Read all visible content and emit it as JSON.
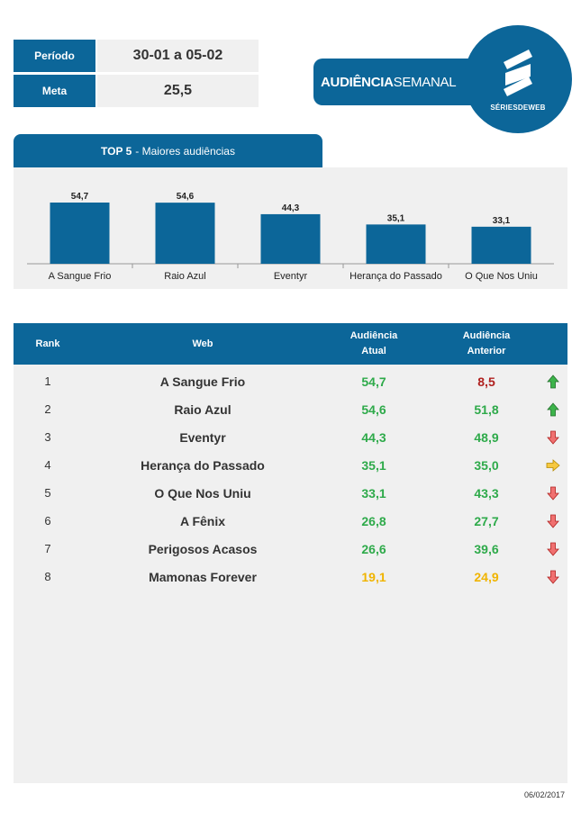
{
  "info": {
    "periodo_label": "Período",
    "periodo_value": "30-01 a 05-02",
    "meta_label": "Meta",
    "meta_value": "25,5"
  },
  "banner": {
    "bold": "AUDIÊNCIA",
    "light": "SEMANAL"
  },
  "logo": {
    "text": "SÉRIESDEWEB"
  },
  "top5": {
    "title_bold": "TOP 5",
    "title_rest": "- Maiores audiências"
  },
  "chart_data": {
    "type": "bar",
    "title": "TOP 5 - Maiores audiências",
    "categories": [
      "A Sangue Frio",
      "Raio Azul",
      "Eventyr",
      "Herança do Passado",
      "O Que Nos Uniu"
    ],
    "values": [
      54.7,
      54.6,
      44.3,
      35.1,
      33.1
    ],
    "value_labels": [
      "54,7",
      "54,6",
      "44,3",
      "35,1",
      "33,1"
    ],
    "color": "#0c6699",
    "grid": false
  },
  "table": {
    "headers": {
      "rank": "Rank",
      "web": "Web",
      "cur_line1": "Audiência",
      "cur_line2": "Atual",
      "prev_line1": "Audiência",
      "prev_line2": "Anterior"
    },
    "rows": [
      {
        "rank": "1",
        "web": "A Sangue Frio",
        "cur": "54,7",
        "prev": "8,5",
        "cur_color": "#2eaa4a",
        "prev_color": "#b0211f",
        "trend": "up"
      },
      {
        "rank": "2",
        "web": "Raio Azul",
        "cur": "54,6",
        "prev": "51,8",
        "cur_color": "#2eaa4a",
        "prev_color": "#2eaa4a",
        "trend": "up"
      },
      {
        "rank": "3",
        "web": "Eventyr",
        "cur": "44,3",
        "prev": "48,9",
        "cur_color": "#2eaa4a",
        "prev_color": "#2eaa4a",
        "trend": "down"
      },
      {
        "rank": "4",
        "web": "Herança do Passado",
        "cur": "35,1",
        "prev": "35,0",
        "cur_color": "#2eaa4a",
        "prev_color": "#2eaa4a",
        "trend": "flat"
      },
      {
        "rank": "5",
        "web": "O Que Nos Uniu",
        "cur": "33,1",
        "prev": "43,3",
        "cur_color": "#2eaa4a",
        "prev_color": "#2eaa4a",
        "trend": "down"
      },
      {
        "rank": "6",
        "web": "A Fênix",
        "cur": "26,8",
        "prev": "27,7",
        "cur_color": "#2eaa4a",
        "prev_color": "#2eaa4a",
        "trend": "down"
      },
      {
        "rank": "7",
        "web": "Perigosos Acasos",
        "cur": "26,6",
        "prev": "39,6",
        "cur_color": "#2eaa4a",
        "prev_color": "#2eaa4a",
        "trend": "down"
      },
      {
        "rank": "8",
        "web": "Mamonas Forever",
        "cur": "19,1",
        "prev": "24,9",
        "cur_color": "#f0b400",
        "prev_color": "#f0b400",
        "trend": "down"
      }
    ]
  },
  "date": "06/02/2017"
}
